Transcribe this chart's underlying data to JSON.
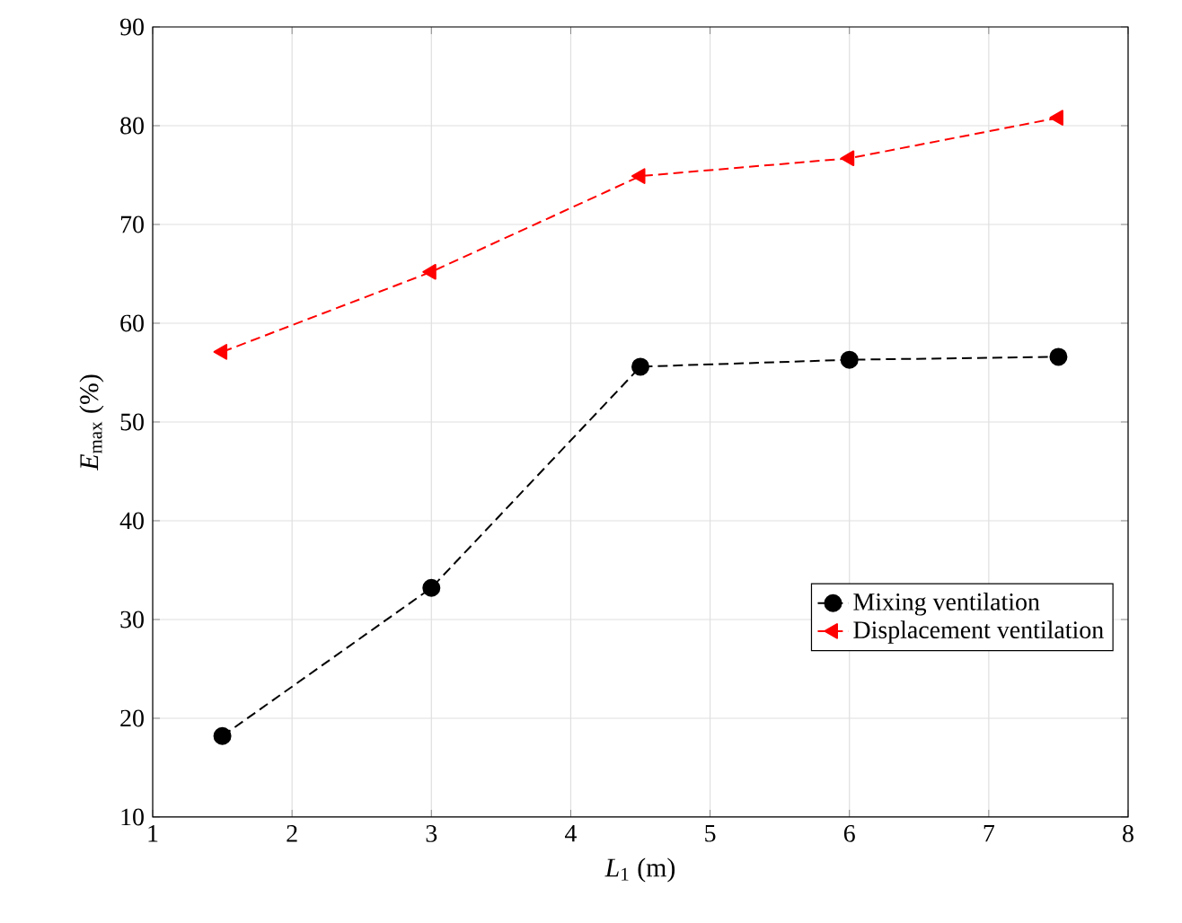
{
  "chart_data": {
    "type": "line",
    "xlabel": "*L*$_{1}$ (m)",
    "ylabel": "*E*$_{max}$ (%)",
    "x": [
      1.5,
      3,
      4.5,
      6,
      7.5
    ],
    "series": [
      {
        "name": "Mixing ventilation",
        "color": "#000000",
        "marker": "circle",
        "values": [
          18.2,
          33.2,
          55.6,
          56.3,
          56.6
        ]
      },
      {
        "name": "Displacement ventilation",
        "color": "#ff0000",
        "marker": "triangle",
        "values": [
          57.1,
          65.2,
          74.9,
          76.7,
          80.8
        ]
      }
    ],
    "xlim": [
      1,
      8
    ],
    "ylim": [
      10,
      90
    ],
    "xticks": [
      1,
      2,
      3,
      4,
      5,
      6,
      7,
      8
    ],
    "yticks": [
      10,
      20,
      30,
      40,
      50,
      60,
      70,
      80,
      90
    ],
    "grid": true,
    "legend": "right",
    "line_style": "dashed"
  }
}
